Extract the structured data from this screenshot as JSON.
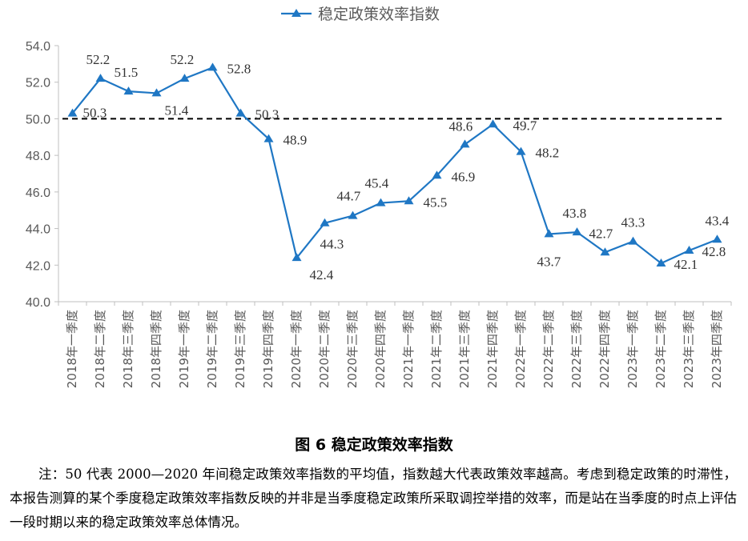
{
  "chart_data": {
    "type": "line",
    "series": [
      {
        "name": "稳定政策效率指数",
        "color": "#1f77c4",
        "marker": "triangle",
        "values": [
          50.3,
          52.2,
          51.5,
          51.4,
          52.2,
          52.8,
          50.3,
          48.9,
          42.4,
          44.3,
          44.7,
          45.4,
          45.5,
          46.9,
          48.6,
          49.7,
          48.2,
          43.7,
          43.8,
          42.7,
          43.3,
          42.1,
          42.8,
          43.4
        ],
        "labels": [
          "50.3",
          "52.2",
          "51.5",
          "51.4",
          "52.2",
          "52.8",
          "50.3",
          "48.9",
          "42.4",
          "44.3",
          "44.7",
          "45.4",
          "45.5",
          "46.9",
          "48.6",
          "49.7",
          "48.2",
          "43.7",
          "43.8",
          "42.7",
          "43.3",
          "42.1",
          "42.8",
          "43.4"
        ]
      }
    ],
    "categories": [
      "2018年一季度",
      "2018年二季度",
      "2018年三季度",
      "2018年四季度",
      "2019年一季度",
      "2019年二季度",
      "2019年三季度",
      "2019年四季度",
      "2020年一季度",
      "2020年二季度",
      "2020年三季度",
      "2020年四季度",
      "2021年一季度",
      "2021年二季度",
      "2021年三季度",
      "2021年四季度",
      "2022年一季度",
      "2022年二季度",
      "2022年三季度",
      "2022年四季度",
      "2023年一季度",
      "2023年二季度",
      "2023年三季度",
      "2023年四季度"
    ],
    "yticks": [
      "40.0",
      "42.0",
      "44.0",
      "46.0",
      "48.0",
      "50.0",
      "52.0",
      "54.0"
    ],
    "ylim": [
      40,
      54
    ],
    "reference_line": {
      "value": 50,
      "style": "dashed"
    },
    "legend_position": "top",
    "grid": false
  },
  "caption": "图 6  稳定政策效率指数",
  "note": "注：50 代表 2000—2020 年间稳定政策效率指数的平均值，指数越大代表政策效率越高。考虑到稳定政策的时滞性，本报告测算的某个季度稳定政策效率指数反映的并非是当季度稳定政策所采取调控举措的效率，而是站在当季度的时点上评估一段时期以来的稳定政策效率总体情况。"
}
